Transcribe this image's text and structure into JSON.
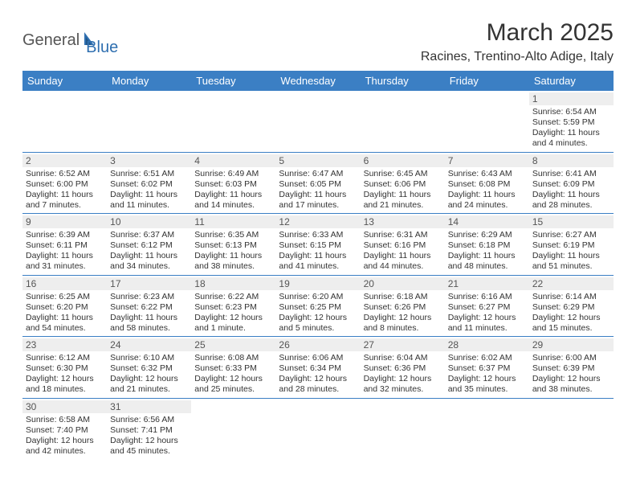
{
  "logo": {
    "text1": "General",
    "text2": "Blue"
  },
  "title": "March 2025",
  "subtitle": "Racines, Trentino-Alto Adige, Italy",
  "colors": {
    "header_bg": "#3b7fc4",
    "header_text": "#ffffff",
    "daynum_bg": "#eeeeee",
    "daynum_text": "#555555",
    "body_text": "#333333",
    "rule": "#3b7fc4",
    "logo_gray": "#555555",
    "logo_blue": "#2f6fb0"
  },
  "typography": {
    "title_fontsize": 30,
    "subtitle_fontsize": 16,
    "header_fontsize": 13,
    "daynum_fontsize": 12,
    "body_fontsize": 10.5
  },
  "weekdays": [
    "Sunday",
    "Monday",
    "Tuesday",
    "Wednesday",
    "Thursday",
    "Friday",
    "Saturday"
  ],
  "weeks": [
    [
      null,
      null,
      null,
      null,
      null,
      null,
      {
        "n": "1",
        "sunrise": "Sunrise: 6:54 AM",
        "sunset": "Sunset: 5:59 PM",
        "day1": "Daylight: 11 hours",
        "day2": "and 4 minutes."
      }
    ],
    [
      {
        "n": "2",
        "sunrise": "Sunrise: 6:52 AM",
        "sunset": "Sunset: 6:00 PM",
        "day1": "Daylight: 11 hours",
        "day2": "and 7 minutes."
      },
      {
        "n": "3",
        "sunrise": "Sunrise: 6:51 AM",
        "sunset": "Sunset: 6:02 PM",
        "day1": "Daylight: 11 hours",
        "day2": "and 11 minutes."
      },
      {
        "n": "4",
        "sunrise": "Sunrise: 6:49 AM",
        "sunset": "Sunset: 6:03 PM",
        "day1": "Daylight: 11 hours",
        "day2": "and 14 minutes."
      },
      {
        "n": "5",
        "sunrise": "Sunrise: 6:47 AM",
        "sunset": "Sunset: 6:05 PM",
        "day1": "Daylight: 11 hours",
        "day2": "and 17 minutes."
      },
      {
        "n": "6",
        "sunrise": "Sunrise: 6:45 AM",
        "sunset": "Sunset: 6:06 PM",
        "day1": "Daylight: 11 hours",
        "day2": "and 21 minutes."
      },
      {
        "n": "7",
        "sunrise": "Sunrise: 6:43 AM",
        "sunset": "Sunset: 6:08 PM",
        "day1": "Daylight: 11 hours",
        "day2": "and 24 minutes."
      },
      {
        "n": "8",
        "sunrise": "Sunrise: 6:41 AM",
        "sunset": "Sunset: 6:09 PM",
        "day1": "Daylight: 11 hours",
        "day2": "and 28 minutes."
      }
    ],
    [
      {
        "n": "9",
        "sunrise": "Sunrise: 6:39 AM",
        "sunset": "Sunset: 6:11 PM",
        "day1": "Daylight: 11 hours",
        "day2": "and 31 minutes."
      },
      {
        "n": "10",
        "sunrise": "Sunrise: 6:37 AM",
        "sunset": "Sunset: 6:12 PM",
        "day1": "Daylight: 11 hours",
        "day2": "and 34 minutes."
      },
      {
        "n": "11",
        "sunrise": "Sunrise: 6:35 AM",
        "sunset": "Sunset: 6:13 PM",
        "day1": "Daylight: 11 hours",
        "day2": "and 38 minutes."
      },
      {
        "n": "12",
        "sunrise": "Sunrise: 6:33 AM",
        "sunset": "Sunset: 6:15 PM",
        "day1": "Daylight: 11 hours",
        "day2": "and 41 minutes."
      },
      {
        "n": "13",
        "sunrise": "Sunrise: 6:31 AM",
        "sunset": "Sunset: 6:16 PM",
        "day1": "Daylight: 11 hours",
        "day2": "and 44 minutes."
      },
      {
        "n": "14",
        "sunrise": "Sunrise: 6:29 AM",
        "sunset": "Sunset: 6:18 PM",
        "day1": "Daylight: 11 hours",
        "day2": "and 48 minutes."
      },
      {
        "n": "15",
        "sunrise": "Sunrise: 6:27 AM",
        "sunset": "Sunset: 6:19 PM",
        "day1": "Daylight: 11 hours",
        "day2": "and 51 minutes."
      }
    ],
    [
      {
        "n": "16",
        "sunrise": "Sunrise: 6:25 AM",
        "sunset": "Sunset: 6:20 PM",
        "day1": "Daylight: 11 hours",
        "day2": "and 54 minutes."
      },
      {
        "n": "17",
        "sunrise": "Sunrise: 6:23 AM",
        "sunset": "Sunset: 6:22 PM",
        "day1": "Daylight: 11 hours",
        "day2": "and 58 minutes."
      },
      {
        "n": "18",
        "sunrise": "Sunrise: 6:22 AM",
        "sunset": "Sunset: 6:23 PM",
        "day1": "Daylight: 12 hours",
        "day2": "and 1 minute."
      },
      {
        "n": "19",
        "sunrise": "Sunrise: 6:20 AM",
        "sunset": "Sunset: 6:25 PM",
        "day1": "Daylight: 12 hours",
        "day2": "and 5 minutes."
      },
      {
        "n": "20",
        "sunrise": "Sunrise: 6:18 AM",
        "sunset": "Sunset: 6:26 PM",
        "day1": "Daylight: 12 hours",
        "day2": "and 8 minutes."
      },
      {
        "n": "21",
        "sunrise": "Sunrise: 6:16 AM",
        "sunset": "Sunset: 6:27 PM",
        "day1": "Daylight: 12 hours",
        "day2": "and 11 minutes."
      },
      {
        "n": "22",
        "sunrise": "Sunrise: 6:14 AM",
        "sunset": "Sunset: 6:29 PM",
        "day1": "Daylight: 12 hours",
        "day2": "and 15 minutes."
      }
    ],
    [
      {
        "n": "23",
        "sunrise": "Sunrise: 6:12 AM",
        "sunset": "Sunset: 6:30 PM",
        "day1": "Daylight: 12 hours",
        "day2": "and 18 minutes."
      },
      {
        "n": "24",
        "sunrise": "Sunrise: 6:10 AM",
        "sunset": "Sunset: 6:32 PM",
        "day1": "Daylight: 12 hours",
        "day2": "and 21 minutes."
      },
      {
        "n": "25",
        "sunrise": "Sunrise: 6:08 AM",
        "sunset": "Sunset: 6:33 PM",
        "day1": "Daylight: 12 hours",
        "day2": "and 25 minutes."
      },
      {
        "n": "26",
        "sunrise": "Sunrise: 6:06 AM",
        "sunset": "Sunset: 6:34 PM",
        "day1": "Daylight: 12 hours",
        "day2": "and 28 minutes."
      },
      {
        "n": "27",
        "sunrise": "Sunrise: 6:04 AM",
        "sunset": "Sunset: 6:36 PM",
        "day1": "Daylight: 12 hours",
        "day2": "and 32 minutes."
      },
      {
        "n": "28",
        "sunrise": "Sunrise: 6:02 AM",
        "sunset": "Sunset: 6:37 PM",
        "day1": "Daylight: 12 hours",
        "day2": "and 35 minutes."
      },
      {
        "n": "29",
        "sunrise": "Sunrise: 6:00 AM",
        "sunset": "Sunset: 6:39 PM",
        "day1": "Daylight: 12 hours",
        "day2": "and 38 minutes."
      }
    ],
    [
      {
        "n": "30",
        "sunrise": "Sunrise: 6:58 AM",
        "sunset": "Sunset: 7:40 PM",
        "day1": "Daylight: 12 hours",
        "day2": "and 42 minutes."
      },
      {
        "n": "31",
        "sunrise": "Sunrise: 6:56 AM",
        "sunset": "Sunset: 7:41 PM",
        "day1": "Daylight: 12 hours",
        "day2": "and 45 minutes."
      },
      null,
      null,
      null,
      null,
      null
    ]
  ]
}
